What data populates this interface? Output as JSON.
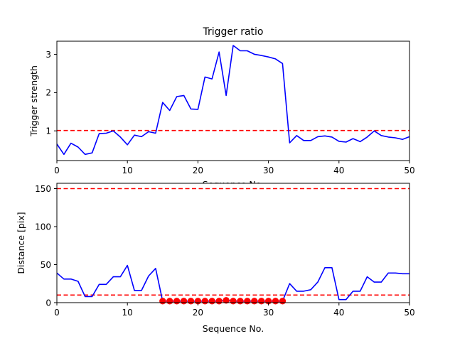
{
  "chart_data": [
    {
      "type": "line",
      "title": "Trigger ratio",
      "xlabel": "Sequence No.",
      "ylabel": "Trigger strength",
      "xlim": [
        0,
        50
      ],
      "ylim": [
        0.22,
        3.32
      ],
      "xticks": [
        "0",
        "10",
        "20",
        "30",
        "40",
        "50"
      ],
      "yticks": [
        "1",
        "2",
        "3"
      ],
      "grid": false,
      "colors": {
        "series": "#0000ff",
        "threshold": "#ff0000"
      },
      "series": [
        {
          "x": [
            0,
            1,
            2,
            3,
            4,
            5,
            6,
            7,
            8,
            9,
            10,
            11,
            12,
            13,
            14,
            15,
            16,
            17,
            18,
            19,
            20,
            21,
            22,
            23,
            24,
            25,
            26,
            27,
            28,
            29,
            30,
            31,
            32,
            33,
            34,
            35,
            36,
            37,
            38,
            39,
            40,
            41,
            42,
            43,
            44,
            45,
            46,
            47,
            48,
            49,
            50
          ],
          "values": [
            0.65,
            0.38,
            0.67,
            0.57,
            0.38,
            0.42,
            0.92,
            0.93,
            0.99,
            0.83,
            0.63,
            0.88,
            0.84,
            0.97,
            0.93,
            1.73,
            1.52,
            1.88,
            1.91,
            1.56,
            1.55,
            2.39,
            2.34,
            3.04,
            1.91,
            3.21,
            3.07,
            3.07,
            2.98,
            2.95,
            2.91,
            2.86,
            2.74,
            0.68,
            0.87,
            0.74,
            0.74,
            0.84,
            0.86,
            0.83,
            0.72,
            0.7,
            0.79,
            0.71,
            0.83,
            0.99,
            0.87,
            0.83,
            0.81,
            0.77,
            0.84
          ]
        }
      ],
      "hlines": [
        1
      ]
    },
    {
      "type": "line",
      "title": "",
      "xlabel": "Sequence No.",
      "ylabel": "Distance [pix]",
      "xlim": [
        0,
        50
      ],
      "ylim": [
        0,
        157
      ],
      "xticks": [
        "0",
        "10",
        "20",
        "30",
        "40",
        "50"
      ],
      "yticks": [
        "0",
        "50",
        "100",
        "150"
      ],
      "grid": false,
      "colors": {
        "series": "#0000ff",
        "threshold": "#ff0000",
        "markers": "#ff0000"
      },
      "series": [
        {
          "x": [
            0,
            1,
            2,
            3,
            4,
            5,
            6,
            7,
            8,
            9,
            10,
            11,
            12,
            13,
            14,
            15,
            16,
            17,
            18,
            19,
            20,
            21,
            22,
            23,
            24,
            25,
            26,
            27,
            28,
            29,
            30,
            31,
            32,
            33,
            34,
            35,
            36,
            37,
            38,
            39,
            40,
            41,
            42,
            43,
            44,
            45,
            46,
            47,
            48,
            49,
            50
          ],
          "values": [
            39,
            31,
            31,
            28,
            8,
            8,
            24,
            24,
            34,
            34,
            49,
            16,
            16,
            35,
            45,
            2,
            2,
            2,
            2,
            2,
            2,
            2,
            2,
            2,
            3,
            2,
            2,
            2,
            2,
            2,
            2,
            2,
            2,
            25,
            15,
            15,
            17,
            27,
            46,
            46,
            4,
            4,
            15,
            15,
            34,
            27,
            27,
            39,
            39,
            38,
            38
          ]
        }
      ],
      "markers": {
        "x": [
          15,
          16,
          17,
          18,
          19,
          20,
          21,
          22,
          23,
          24,
          25,
          26,
          27,
          28,
          29,
          30,
          31,
          32
        ],
        "values": [
          2,
          2,
          2,
          2,
          2,
          2,
          2,
          2,
          2,
          3,
          2,
          2,
          2,
          2,
          2,
          2,
          2,
          2
        ]
      },
      "hlines": [
        150,
        10
      ]
    }
  ]
}
